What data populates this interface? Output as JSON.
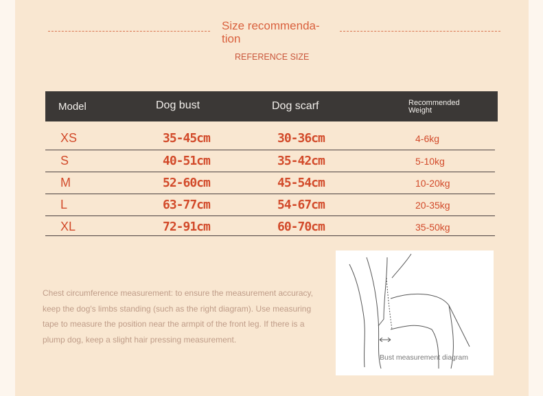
{
  "header": {
    "title": "Size recommenda-\ntion",
    "subtitle": "REFERENCE SIZE"
  },
  "table": {
    "columns": [
      "Model",
      "Dog bust",
      "Dog scarf",
      "Recommended Weight"
    ],
    "rows": [
      [
        "XS",
        "35-45cm",
        "30-36cm",
        "4-6kg"
      ],
      [
        "S",
        "40-51cm",
        "35-42cm",
        "5-10kg"
      ],
      [
        "M",
        "52-60cm",
        "45-54cm",
        "10-20kg"
      ],
      [
        "L",
        "63-77cm",
        "54-67cm",
        "20-35kg"
      ],
      [
        "XL",
        "72-91cm",
        "60-70cm",
        "35-50kg"
      ]
    ]
  },
  "description": "Chest circumference measurement: to ensure the measurement accuracy, keep the dog's limbs standing (such as the right diagram). Use measuring tape to measure the position near the armpit of the front leg. If there is a plump dog, keep a slight hair pressing measurement.",
  "diagram": {
    "caption": "Bust measurement diagram",
    "icon": "dog-measurement-illustration"
  },
  "colors": {
    "accent": "#d24a2a",
    "header_bg": "#3b3836",
    "background": "#f9e7d1"
  }
}
